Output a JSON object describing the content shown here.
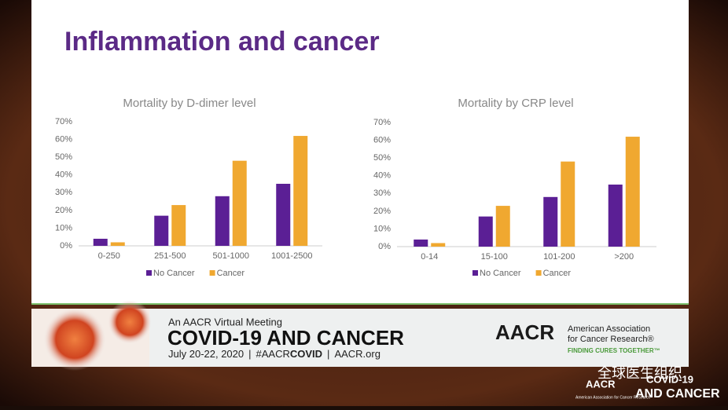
{
  "slide": {
    "title": "Inflammation and cancer"
  },
  "chart_data": [
    {
      "type": "bar",
      "title": "Mortality by D-dimer level",
      "categories": [
        "0-250",
        "251-500",
        "501-1000",
        "1001-2500"
      ],
      "series": [
        {
          "name": "No Cancer",
          "color": "#5b1f95",
          "values": [
            4,
            17,
            28,
            35
          ]
        },
        {
          "name": "Cancer",
          "color": "#f0a830",
          "values": [
            2,
            23,
            48,
            62
          ]
        }
      ],
      "ylim": [
        0,
        70
      ],
      "yticks": [
        {
          "value": 0,
          "label": "0%"
        },
        {
          "value": 10,
          "label": "10%"
        },
        {
          "value": 20,
          "label": "20%"
        },
        {
          "value": 30,
          "label": "30%"
        },
        {
          "value": 40,
          "label": "40%"
        },
        {
          "value": 50,
          "label": "50%"
        },
        {
          "value": 60,
          "label": "60%"
        },
        {
          "value": 70,
          "label": "70%"
        }
      ],
      "grid": false,
      "legend": "bottom"
    },
    {
      "type": "bar",
      "title": "Mortality by CRP level",
      "categories": [
        "0-14",
        "15-100",
        "101-200",
        ">200"
      ],
      "series": [
        {
          "name": "No Cancer",
          "color": "#5b1f95",
          "values": [
            4,
            17,
            28,
            35
          ]
        },
        {
          "name": "Cancer",
          "color": "#f0a830",
          "values": [
            2,
            23,
            48,
            62
          ]
        }
      ],
      "ylim": [
        0,
        70
      ],
      "yticks": [
        {
          "value": 0,
          "label": "0%"
        },
        {
          "value": 10,
          "label": "10%"
        },
        {
          "value": 20,
          "label": "20%"
        },
        {
          "value": 30,
          "label": "30%"
        },
        {
          "value": 40,
          "label": "40%"
        },
        {
          "value": 50,
          "label": "50%"
        },
        {
          "value": 60,
          "label": "60%"
        },
        {
          "value": 70,
          "label": "70%"
        }
      ],
      "grid": false,
      "legend": "bottom"
    }
  ],
  "banner": {
    "kicker": "An AACR Virtual Meeting",
    "title": "COVID-19 AND CANCER",
    "date": "July 20-22, 2020",
    "hashtag": "#AACR",
    "hashtag_bold": "COVID",
    "site": "AACR.org",
    "logo": "AACR",
    "org_line1": "American Association",
    "org_line2": "for Cancer Research®",
    "tagline": "FINDING CURES TOGETHER™"
  },
  "watermark": {
    "label": "全球医生组织",
    "logo": "AACR",
    "event1": "COVID-19",
    "event2": "AND CANCER",
    "org": "American Association for Cancer Research"
  }
}
